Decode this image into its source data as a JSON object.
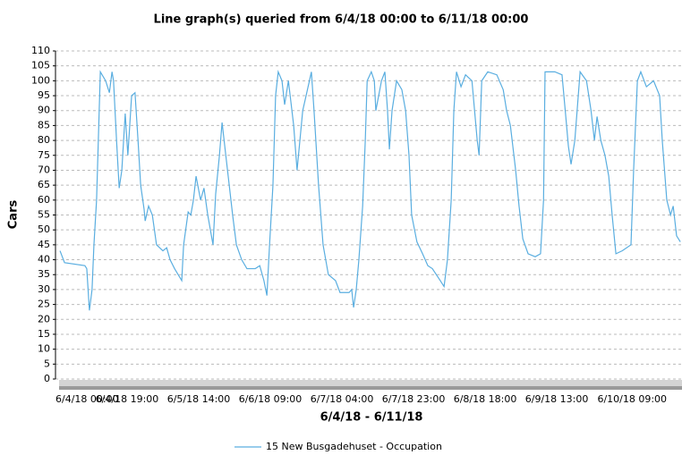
{
  "chart_data": {
    "type": "line",
    "title": "Line graph(s) queried from 6/4/18 00:00 to 6/11/18 00:00",
    "x_label": "6/4/18 - 6/11/18",
    "y_label": "Cars",
    "x": [
      1.2,
      2.4,
      7.8,
      8.3,
      9.0,
      9.7,
      10.2,
      10.9,
      11.9,
      13.3,
      14.3,
      15.0,
      15.4,
      16.2,
      16.9,
      17.6,
      18.5,
      19.2,
      20.2,
      21.1,
      21.9,
      22.6,
      23.5,
      23.8,
      24.7,
      25.7,
      26.8,
      28.5,
      29.5,
      30.4,
      31.6,
      33.5,
      34,
      35.2,
      35.9,
      36.6,
      37.3,
      38.5,
      39.4,
      40.4,
      41.8,
      42.5,
      43.5,
      44.2,
      45.1,
      46.1,
      47,
      48,
      49.4,
      50.8,
      53,
      54.2,
      55.3,
      56.1,
      56.8,
      57.7,
      58.4,
      59.1,
      60.1,
      60.8,
      61.8,
      63.2,
      64.1,
      65.6,
      66.5,
      67.9,
      68.6,
      69.8,
      71,
      71.7,
      72.4,
      74.3,
      75.5,
      77.9,
      78.6,
      79.1,
      79.8,
      80.5,
      81.5,
      82.2,
      82.7,
      83.8,
      84.6,
      85,
      86.5,
      87.4,
      88.1,
      88.6,
      89.3,
      90.5,
      91.9,
      92.9,
      93.8,
      94.5,
      95.9,
      97.4,
      98.8,
      100,
      102.1,
      103.1,
      104,
      105,
      105.7,
      106.4,
      107.6,
      108.8,
      110.5,
      111.2,
      111.9,
      112.4,
      113.1,
      114.7,
      117.1,
      118.8,
      119.7,
      120.7,
      122.1,
      123,
      124,
      125.4,
      127.3,
      128.7,
      129.5,
      129.9,
      132.5,
      134.4,
      135.4,
      136.1,
      136.8,
      137.8,
      139.2,
      140.9,
      142.1,
      143,
      143.7,
      144.7,
      145.8,
      146.8,
      147.7,
      148.7,
      150.4,
      152.7,
      153.4,
      154.4,
      155.3,
      156.8,
      158.7,
      160.3,
      161,
      162.2,
      163.2,
      163.9,
      164.8,
      165.8
    ],
    "series": [
      {
        "name": "15 New Busgadehuset - Occupation",
        "color": "#5aaee0",
        "values": [
          43,
          39,
          38,
          37,
          23,
          30,
          45,
          60,
          103,
          100,
          96,
          103,
          100,
          80,
          64,
          70,
          89,
          75,
          95,
          96,
          80,
          65,
          57,
          53,
          58,
          55,
          45,
          43,
          44,
          40,
          37,
          33,
          45,
          56,
          55,
          60,
          68,
          60,
          64,
          55,
          45,
          62,
          75,
          86,
          76,
          65,
          55,
          45,
          40,
          37,
          37,
          38,
          33,
          28,
          45,
          65,
          95,
          103,
          100,
          92,
          100,
          85,
          70,
          90,
          95,
          103,
          90,
          65,
          45,
          40,
          35,
          33,
          29,
          29,
          30,
          24,
          30,
          40,
          58,
          80,
          100,
          103,
          100,
          90,
          100,
          103,
          90,
          77,
          90,
          100,
          97,
          90,
          75,
          55,
          46,
          42,
          38,
          37,
          33,
          31,
          40,
          60,
          90,
          103,
          98,
          102,
          100,
          90,
          80,
          75,
          100,
          103,
          102,
          97,
          90,
          85,
          70,
          58,
          47,
          42,
          41,
          42,
          60,
          103,
          103,
          102,
          88,
          78,
          72,
          80,
          103,
          100,
          90,
          80,
          88,
          80,
          75,
          68,
          55,
          42,
          43,
          45,
          70,
          100,
          103,
          98,
          100,
          95,
          80,
          60,
          55,
          58,
          48,
          46
        ]
      }
    ],
    "xlim": [
      0,
      166
    ],
    "xticks": [
      {
        "value": 0,
        "label": "6/4/18 00:00"
      },
      {
        "value": 19,
        "label": "6/4/18 19:00"
      },
      {
        "value": 38,
        "label": "6/5/18 14:00"
      },
      {
        "value": 57,
        "label": "6/6/18 09:00"
      },
      {
        "value": 76,
        "label": "6/7/18 04:00"
      },
      {
        "value": 95,
        "label": "6/7/18 23:00"
      },
      {
        "value": 114,
        "label": "6/8/18 18:00"
      },
      {
        "value": 133,
        "label": "6/9/18 13:00"
      },
      {
        "value": 153,
        "label": "6/10/18 09:00"
      }
    ],
    "ylim": [
      0,
      110
    ],
    "yticks": [
      0,
      5,
      10,
      15,
      20,
      25,
      30,
      35,
      40,
      45,
      50,
      55,
      60,
      65,
      70,
      75,
      80,
      85,
      90,
      95,
      100,
      105,
      110
    ],
    "grid": true
  }
}
